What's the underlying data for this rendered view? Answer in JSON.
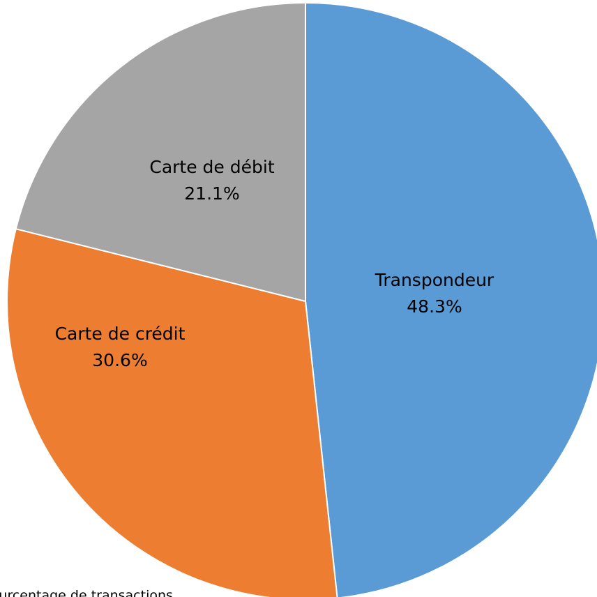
{
  "chart_data": {
    "type": "pie",
    "categories": [
      "Transpondeur",
      "Carte de crédit",
      "Carte de débit"
    ],
    "values": [
      48.3,
      30.6,
      21.1
    ],
    "value_labels": [
      "48.3%",
      "30.6%",
      "21.1%"
    ],
    "colors": [
      "#5b9bd5",
      "#ed7d31",
      "#a5a5a5"
    ],
    "footnote": "Pourcentage de transactions"
  }
}
